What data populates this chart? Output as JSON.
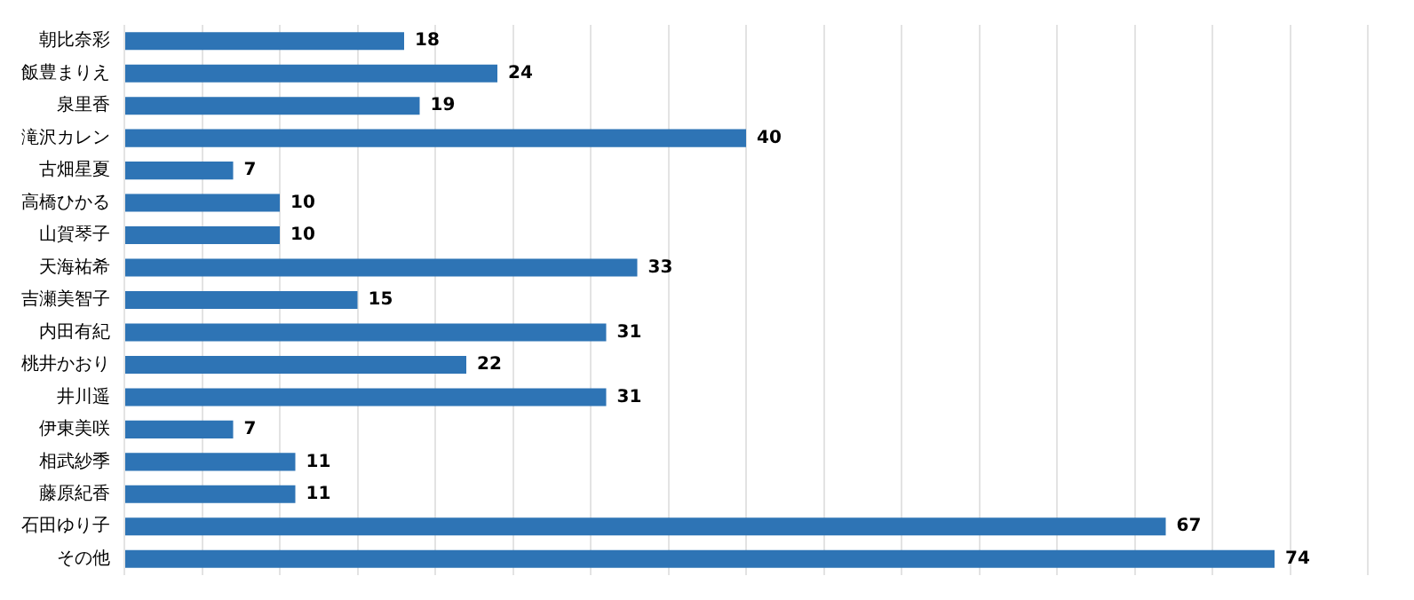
{
  "chart_data": {
    "type": "bar",
    "orientation": "horizontal",
    "categories": [
      "朝比奈彩",
      "飯豊まりえ",
      "泉里香",
      "滝沢カレン",
      "古畑星夏",
      "高橋ひかる",
      "山賀琴子",
      "天海祐希",
      "吉瀬美智子",
      "内田有紀",
      "桃井かおり",
      "井川遥",
      "伊東美咲",
      "相武紗季",
      "藤原紀香",
      "石田ゆり子",
      "その他"
    ],
    "values": [
      18,
      24,
      19,
      40,
      7,
      10,
      10,
      33,
      15,
      31,
      22,
      31,
      7,
      11,
      11,
      67,
      74
    ],
    "color": "#2e74b5",
    "xlim": [
      0,
      80
    ],
    "xticks": [
      {
        "value": 0,
        "label": null
      },
      {
        "value": 5,
        "label": null
      },
      {
        "value": 10,
        "label": null
      },
      {
        "value": 15,
        "label": null
      },
      {
        "value": 20,
        "label": null
      },
      {
        "value": 25,
        "label": null
      },
      {
        "value": 30,
        "label": null
      },
      {
        "value": 35,
        "label": null
      },
      {
        "value": 40,
        "label": null
      },
      {
        "value": 45,
        "label": null
      },
      {
        "value": 50,
        "label": null
      },
      {
        "value": 55,
        "label": null
      },
      {
        "value": 60,
        "label": null
      },
      {
        "value": 65,
        "label": null
      },
      {
        "value": 70,
        "label": null
      },
      {
        "value": 75,
        "label": null
      },
      {
        "value": 80,
        "label": null
      }
    ],
    "tick_labels": "y",
    "grid": "x",
    "data_labels": true,
    "legend": false
  }
}
